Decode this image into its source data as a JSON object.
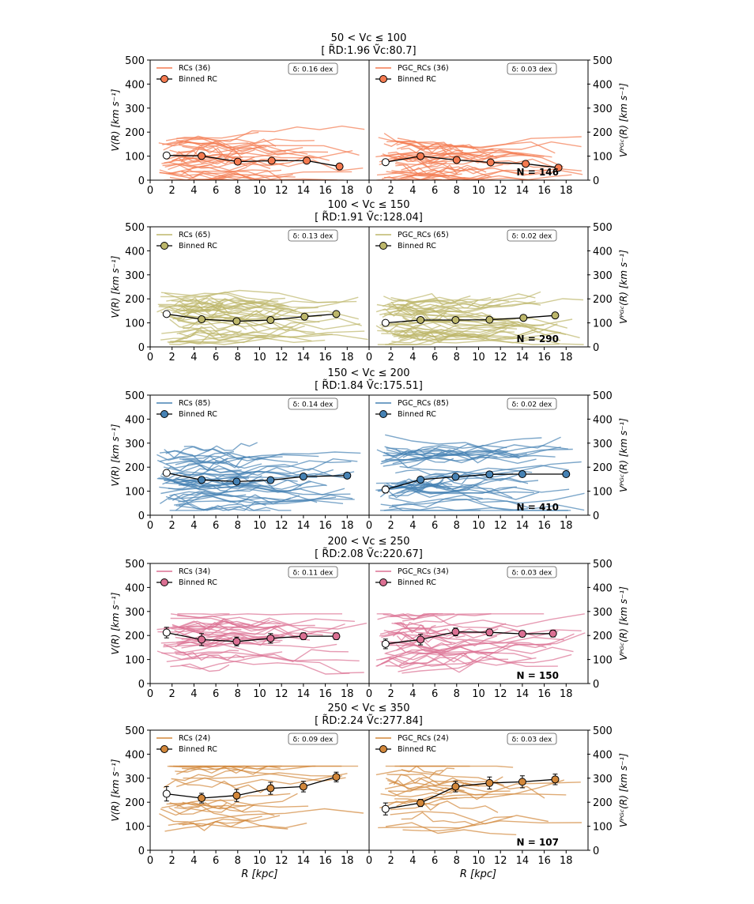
{
  "figure": {
    "xlabel": "R [kpc]",
    "ylabel_left": "V(R) [km s⁻¹]",
    "ylabel_right": "Vᴾᴳᶜ(R) [km s⁻¹]",
    "left_rc_prefix": "RCs",
    "right_rc_prefix": "PGC_RCs",
    "binned_label": "Binned RC"
  },
  "chart_data": [
    {
      "type": "line",
      "title": "50 < Vc ≤ 100",
      "subtitle": "[ R̃D:1.96  Ṽc:80.7]",
      "color": "#f47a50",
      "n_rcs": 36,
      "n_label": "N = 146",
      "delta_left": "δ: 0.16 dex",
      "delta_right": "δ: 0.03 dex",
      "xlim": [
        0,
        20
      ],
      "ylim": [
        0,
        500
      ],
      "xticks": [
        0,
        2,
        4,
        6,
        8,
        10,
        12,
        14,
        16,
        18
      ],
      "yticks": [
        0,
        100,
        200,
        300,
        400,
        500
      ],
      "left_binned": {
        "x": [
          1.5,
          4.7,
          8.0,
          11.1,
          14.3,
          17.3
        ],
        "y": [
          103,
          101,
          77,
          81,
          81,
          57
        ],
        "err": [
          6,
          5,
          5,
          5,
          6,
          5
        ]
      },
      "right_binned": {
        "x": [
          1.5,
          4.7,
          8.0,
          11.1,
          14.3,
          17.3
        ],
        "y": [
          75,
          100,
          84,
          74,
          68,
          52
        ],
        "err": [
          5,
          6,
          5,
          5,
          5,
          5
        ]
      },
      "spread": {
        "min": 0,
        "max": 225
      }
    },
    {
      "type": "line",
      "title": "100 < Vc ≤ 150",
      "subtitle": "[ R̃D:1.91  Ṽc:128.04]",
      "color": "#bdb76b",
      "n_rcs": 65,
      "n_label": "N = 290",
      "delta_left": "δ: 0.13 dex",
      "delta_right": "δ: 0.02 dex",
      "xlim": [
        0,
        20
      ],
      "ylim": [
        0,
        500
      ],
      "xticks": [
        0,
        2,
        4,
        6,
        8,
        10,
        12,
        14,
        16,
        18
      ],
      "yticks": [
        0,
        100,
        200,
        300,
        400,
        500
      ],
      "left_binned": {
        "x": [
          1.5,
          4.7,
          7.9,
          11.0,
          14.1,
          17.0
        ],
        "y": [
          137,
          115,
          107,
          112,
          126,
          137
        ],
        "err": [
          8,
          6,
          5,
          6,
          6,
          6
        ]
      },
      "right_binned": {
        "x": [
          1.5,
          4.7,
          7.9,
          11.0,
          14.1,
          17.0
        ],
        "y": [
          100,
          112,
          112,
          113,
          121,
          131
        ],
        "err": [
          6,
          5,
          5,
          5,
          5,
          6
        ]
      },
      "spread": {
        "min": 10,
        "max": 240
      }
    },
    {
      "type": "line",
      "title": "150 < Vc ≤ 200",
      "subtitle": "[ R̃D:1.84  Ṽc:175.51]",
      "color": "#4682b4",
      "n_rcs": 85,
      "n_label": "N = 410",
      "delta_left": "δ: 0.14 dex",
      "delta_right": "δ: 0.02 dex",
      "xlim": [
        0,
        20
      ],
      "ylim": [
        0,
        500
      ],
      "xticks": [
        0,
        2,
        4,
        6,
        8,
        10,
        12,
        14,
        16,
        18
      ],
      "yticks": [
        0,
        100,
        200,
        300,
        400,
        500
      ],
      "left_binned": {
        "x": [
          1.5,
          4.7,
          7.9,
          11.0,
          14.0,
          18.0
        ],
        "y": [
          176,
          147,
          140,
          146,
          161,
          165
        ],
        "err": [
          10,
          12,
          9,
          10,
          9,
          5
        ]
      },
      "right_binned": {
        "x": [
          1.5,
          4.7,
          7.9,
          11.0,
          14.0,
          18.0
        ],
        "y": [
          107,
          148,
          160,
          170,
          171,
          171
        ],
        "err": [
          14,
          10,
          8,
          9,
          6,
          5
        ]
      },
      "spread": {
        "min": 20,
        "max": 390
      }
    },
    {
      "type": "line",
      "title": "200 < Vc ≤ 250",
      "subtitle": "[ R̃D:2.08  Ṽc:220.67]",
      "color": "#db7093",
      "n_rcs": 34,
      "n_label": "N = 150",
      "delta_left": "δ: 0.11 dex",
      "delta_right": "δ: 0.03 dex",
      "xlim": [
        0,
        20
      ],
      "ylim": [
        0,
        500
      ],
      "xticks": [
        0,
        2,
        4,
        6,
        8,
        10,
        12,
        14,
        16,
        18
      ],
      "yticks": [
        0,
        100,
        200,
        300,
        400,
        500
      ],
      "left_binned": {
        "x": [
          1.5,
          4.7,
          7.9,
          11.0,
          14.0,
          17.0
        ],
        "y": [
          212,
          183,
          175,
          188,
          197,
          197
        ],
        "err": [
          22,
          25,
          18,
          20,
          14,
          14
        ]
      },
      "right_binned": {
        "x": [
          1.5,
          4.7,
          7.9,
          11.0,
          14.0,
          16.8
        ],
        "y": [
          165,
          183,
          215,
          213,
          207,
          208
        ],
        "err": [
          20,
          22,
          16,
          14,
          13,
          14
        ]
      },
      "spread": {
        "min": 10,
        "max": 290
      }
    },
    {
      "type": "line",
      "title": "250 < Vc ≤ 350",
      "subtitle": "[ R̃D:2.24  Ṽc:277.84]",
      "color": "#d2873a",
      "n_rcs": 24,
      "n_label": "N = 107",
      "delta_left": "δ: 0.09 dex",
      "delta_right": "δ: 0.03 dex",
      "xlim": [
        0,
        20
      ],
      "ylim": [
        0,
        500
      ],
      "xticks": [
        0,
        2,
        4,
        6,
        8,
        10,
        12,
        14,
        16,
        18
      ],
      "yticks": [
        0,
        100,
        200,
        300,
        400,
        500
      ],
      "left_binned": {
        "x": [
          1.5,
          4.7,
          7.9,
          11.0,
          14.0,
          17.0
        ],
        "y": [
          235,
          217,
          228,
          258,
          265,
          305
        ],
        "err": [
          30,
          20,
          25,
          25,
          22,
          20
        ]
      },
      "right_binned": {
        "x": [
          1.5,
          4.7,
          7.9,
          11.0,
          14.0,
          17.0
        ],
        "y": [
          172,
          197,
          265,
          280,
          285,
          295
        ],
        "err": [
          25,
          15,
          22,
          25,
          25,
          22
        ]
      },
      "spread": {
        "min": 10,
        "max": 350
      }
    }
  ]
}
